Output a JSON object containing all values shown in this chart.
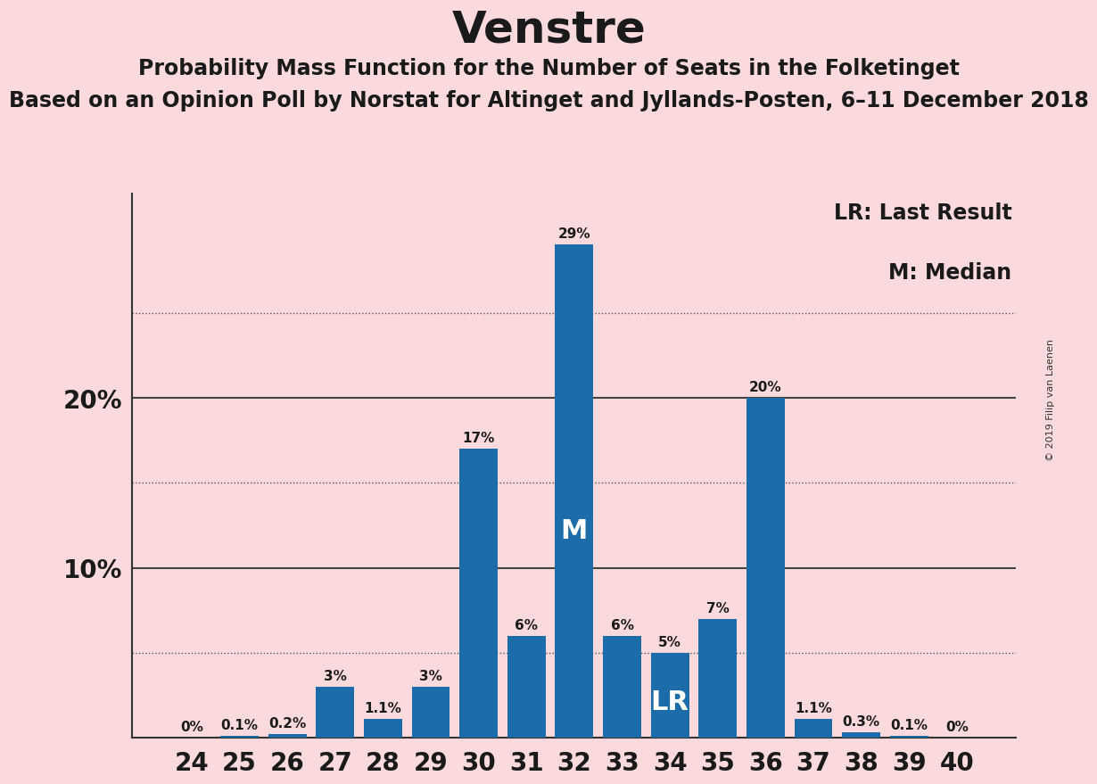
{
  "title": "Venstre",
  "subtitle": "Probability Mass Function for the Number of Seats in the Folketinget",
  "subtitle2": "Based on an Opinion Poll by Norstat for Altinget and Jyllands-Posten, 6–11 December 2018",
  "watermark": "© 2019 Filip van Laenen",
  "categories": [
    24,
    25,
    26,
    27,
    28,
    29,
    30,
    31,
    32,
    33,
    34,
    35,
    36,
    37,
    38,
    39,
    40
  ],
  "values": [
    0.0,
    0.1,
    0.2,
    3.0,
    1.1,
    3.0,
    17.0,
    6.0,
    29.0,
    6.0,
    5.0,
    7.0,
    20.0,
    1.1,
    0.3,
    0.1,
    0.0
  ],
  "labels": [
    "0%",
    "0.1%",
    "0.2%",
    "3%",
    "1.1%",
    "3%",
    "17%",
    "6%",
    "29%",
    "6%",
    "5%",
    "7%",
    "20%",
    "1.1%",
    "0.3%",
    "0.1%",
    "0%"
  ],
  "bar_color": "#1b6ca8",
  "background_color": "#fadadd",
  "median_seat": 32,
  "last_result_seat": 34,
  "legend_lr": "LR: Last Result",
  "legend_m": "M: Median",
  "ylim_max": 32,
  "solid_grid": [
    10,
    20
  ],
  "dotted_grid": [
    5,
    15,
    25
  ],
  "ylabel_ticks": [
    10,
    20
  ],
  "title_fontsize": 36,
  "subtitle_fontsize": 17,
  "subtitle2_fontsize": 17,
  "bar_label_fontsize": 11,
  "tick_label_fontsize": 20,
  "legend_fontsize": 17,
  "watermark_fontsize": 8,
  "m_label_fontsize": 22,
  "lr_label_fontsize": 22
}
